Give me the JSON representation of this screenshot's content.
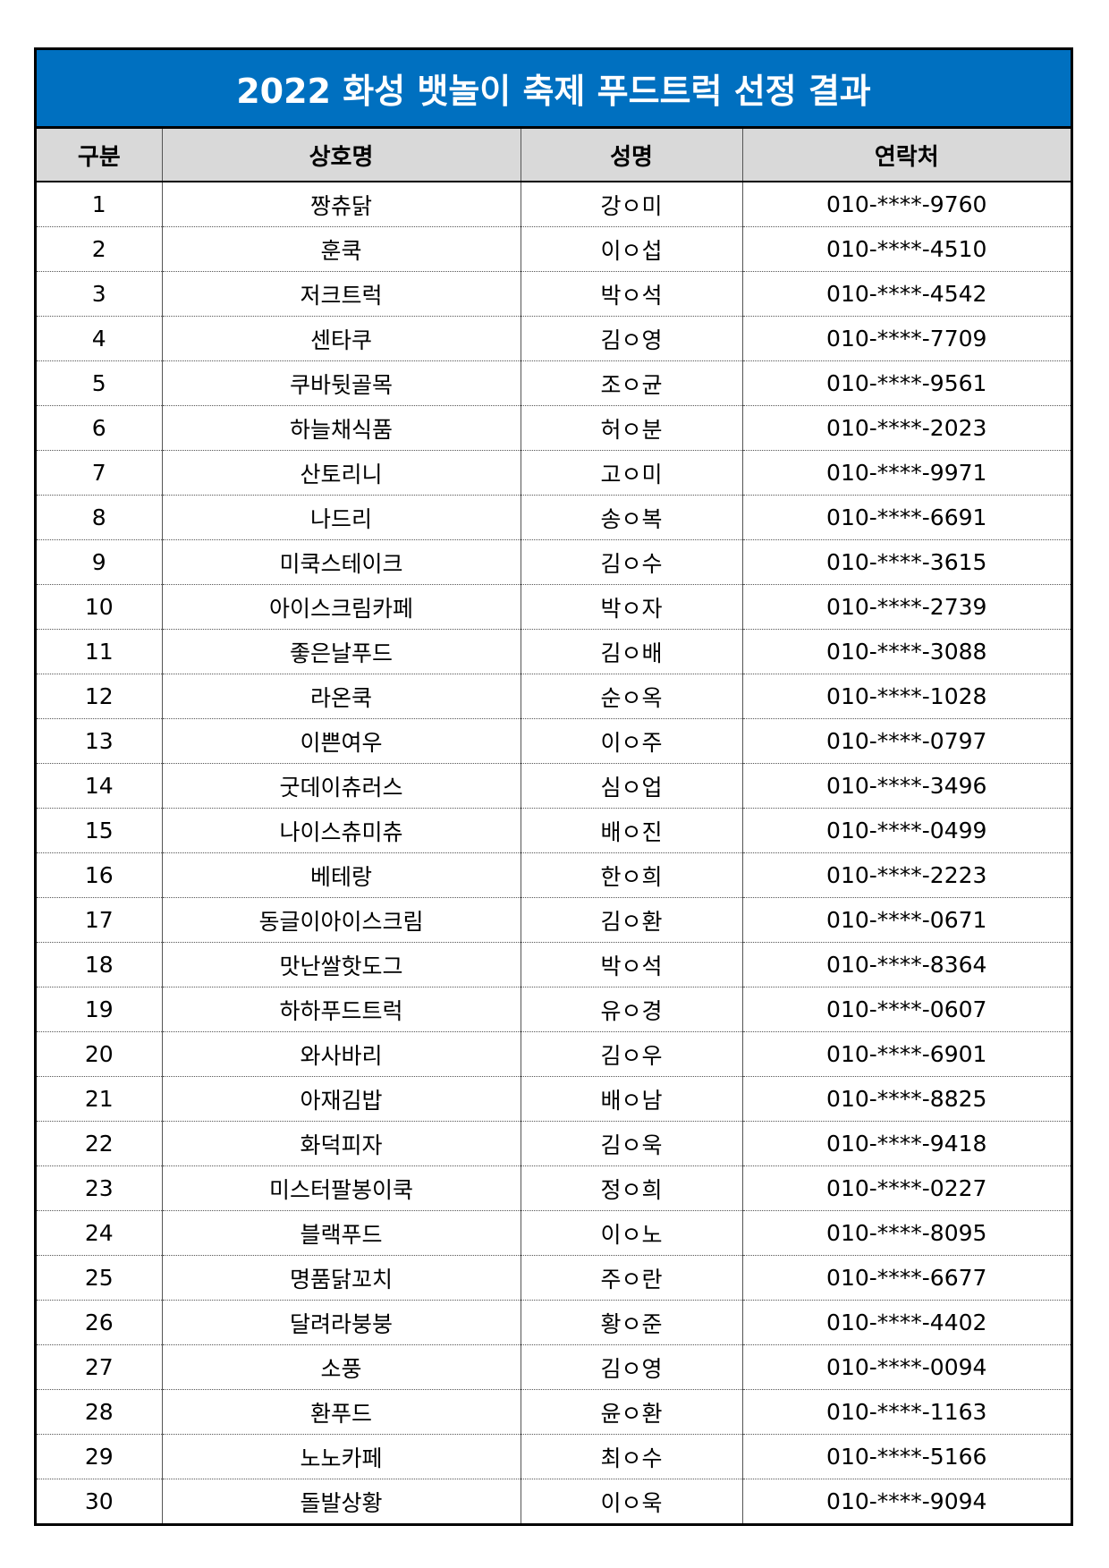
{
  "title": "2022 화성 뱃놀이 축제 푸드트럭 선정 결과",
  "table": {
    "headers": [
      "구분",
      "상호명",
      "성명",
      "연락처"
    ],
    "rows": [
      [
        "1",
        "짱츄닭",
        "강ㅇ미",
        "010-****-9760"
      ],
      [
        "2",
        "훈쿡",
        "이ㅇ섭",
        "010-****-4510"
      ],
      [
        "3",
        "저크트럭",
        "박ㅇ석",
        "010-****-4542"
      ],
      [
        "4",
        "센타쿠",
        "김ㅇ영",
        "010-****-7709"
      ],
      [
        "5",
        "쿠바뒷골목",
        "조ㅇ균",
        "010-****-9561"
      ],
      [
        "6",
        "하늘채식품",
        "허ㅇ분",
        "010-****-2023"
      ],
      [
        "7",
        "산토리니",
        "고ㅇ미",
        "010-****-9971"
      ],
      [
        "8",
        "나드리",
        "송ㅇ복",
        "010-****-6691"
      ],
      [
        "9",
        "미쿡스테이크",
        "김ㅇ수",
        "010-****-3615"
      ],
      [
        "10",
        "아이스크림카페",
        "박ㅇ자",
        "010-****-2739"
      ],
      [
        "11",
        "좋은날푸드",
        "김ㅇ배",
        "010-****-3088"
      ],
      [
        "12",
        "라온쿡",
        "순ㅇ옥",
        "010-****-1028"
      ],
      [
        "13",
        "이쁜여우",
        "이ㅇ주",
        "010-****-0797"
      ],
      [
        "14",
        "굿데이츄러스",
        "심ㅇ업",
        "010-****-3496"
      ],
      [
        "15",
        "나이스츄미츄",
        "배ㅇ진",
        "010-****-0499"
      ],
      [
        "16",
        "베테랑",
        "한ㅇ희",
        "010-****-2223"
      ],
      [
        "17",
        "동글이아이스크림",
        "김ㅇ환",
        "010-****-0671"
      ],
      [
        "18",
        "맛난쌀핫도그",
        "박ㅇ석",
        "010-****-8364"
      ],
      [
        "19",
        "하하푸드트럭",
        "유ㅇ경",
        "010-****-0607"
      ],
      [
        "20",
        "와사바리",
        "김ㅇ우",
        "010-****-6901"
      ],
      [
        "21",
        "아재김밥",
        "배ㅇ남",
        "010-****-8825"
      ],
      [
        "22",
        "화덕피자",
        "김ㅇ욱",
        "010-****-9418"
      ],
      [
        "23",
        "미스터팔봉이쿡",
        "정ㅇ희",
        "010-****-0227"
      ],
      [
        "24",
        "블랙푸드",
        "이ㅇ노",
        "010-****-8095"
      ],
      [
        "25",
        "명품닭꼬치",
        "주ㅇ란",
        "010-****-6677"
      ],
      [
        "26",
        "달려라붕붕",
        "황ㅇ준",
        "010-****-4402"
      ],
      [
        "27",
        "소풍",
        "김ㅇ영",
        "010-****-0094"
      ],
      [
        "28",
        "환푸드",
        "윤ㅇ환",
        "010-****-1163"
      ],
      [
        "29",
        "노노카페",
        "최ㅇ수",
        "010-****-5166"
      ],
      [
        "30",
        "돌발상황",
        "이ㅇ욱",
        "010-****-9094"
      ]
    ]
  }
}
